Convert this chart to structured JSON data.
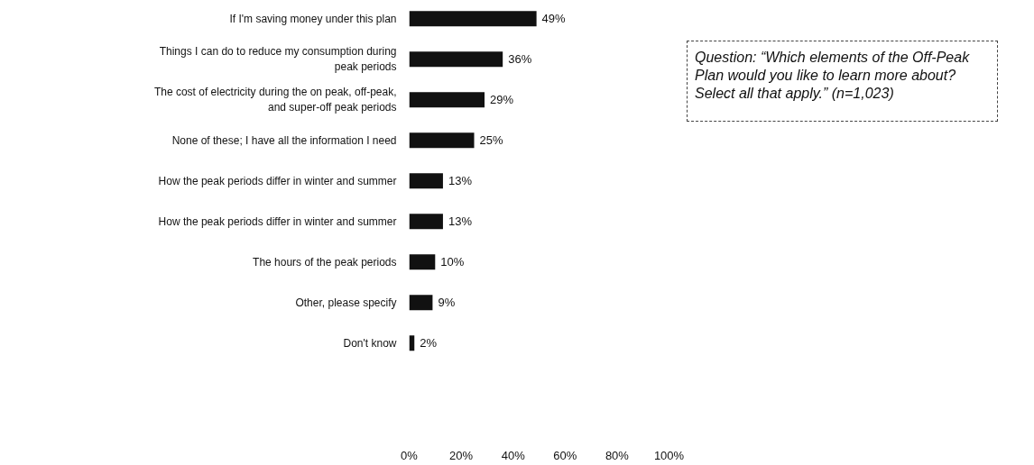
{
  "chart_data": {
    "type": "bar",
    "orientation": "horizontal",
    "categories": [
      "If I'm saving money under this plan",
      "Things I can do to reduce my consumption during\npeak periods",
      "The cost of electricity during the on peak, off-peak,\nand super-off peak periods",
      "None of these; I have all the information I need",
      "How the peak periods differ in winter and summer",
      "How the peak periods differ in winter and summer",
      "The hours of the peak periods",
      "Other, please specify",
      "Don't know"
    ],
    "values": [
      49,
      36,
      29,
      25,
      13,
      13,
      10,
      9,
      2
    ],
    "value_labels": [
      "49%",
      "36%",
      "29%",
      "25%",
      "13%",
      "13%",
      "10%",
      "9%",
      "2%"
    ],
    "color": "#111111",
    "xlim": [
      0,
      100
    ],
    "xticks": [
      {
        "value": 0,
        "label": "0%"
      },
      {
        "value": 20,
        "label": "20%"
      },
      {
        "value": 40,
        "label": "40%"
      },
      {
        "value": 60,
        "label": "60%"
      },
      {
        "value": 80,
        "label": "80%"
      },
      {
        "value": 100,
        "label": "100%"
      }
    ],
    "grid": false,
    "annotations": [
      "Question: “Which elements of the Off-Peak\nPlan would you like to learn more about?\nSelect all that apply.” (n=1,023)"
    ]
  }
}
